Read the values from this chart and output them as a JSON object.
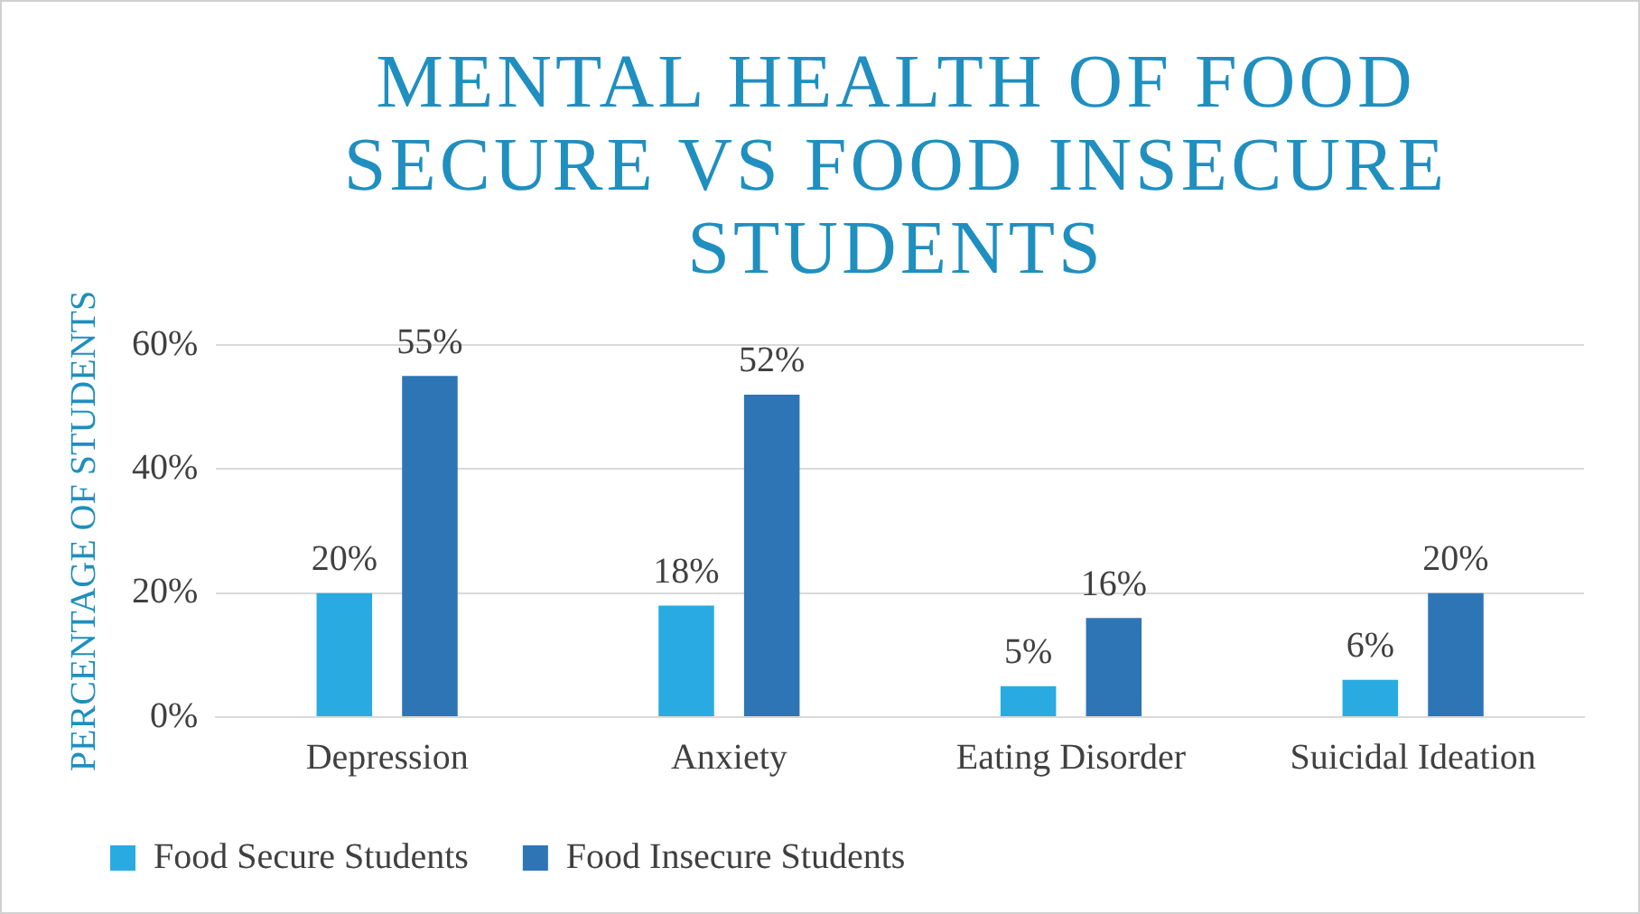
{
  "chart_data": {
    "type": "bar",
    "title": "MENTAL HEALTH OF FOOD SECURE VS FOOD INSECURE STUDENTS",
    "ylabel": "PERCENTAGE OF STUDENTS",
    "categories": [
      "Depression",
      "Anxiety",
      "Eating Disorder",
      "Suicidal Ideation"
    ],
    "series": [
      {
        "name": "Food Secure Students",
        "color": "#29abe2",
        "values": [
          20,
          18,
          5,
          6
        ],
        "value_labels": [
          "20%",
          "18%",
          "5%",
          "6%"
        ]
      },
      {
        "name": "Food Insecure Students",
        "color": "#2e75b6",
        "values": [
          55,
          52,
          16,
          20
        ],
        "value_labels": [
          "55%",
          "52%",
          "16%",
          "20%"
        ]
      }
    ],
    "ylim": [
      0,
      60
    ],
    "yticks": [
      {
        "value": 0,
        "label": "0%"
      },
      {
        "value": 20,
        "label": "20%"
      },
      {
        "value": 40,
        "label": "40%"
      },
      {
        "value": 60,
        "label": "60%"
      }
    ],
    "grid": "y",
    "legend": "bottom"
  }
}
